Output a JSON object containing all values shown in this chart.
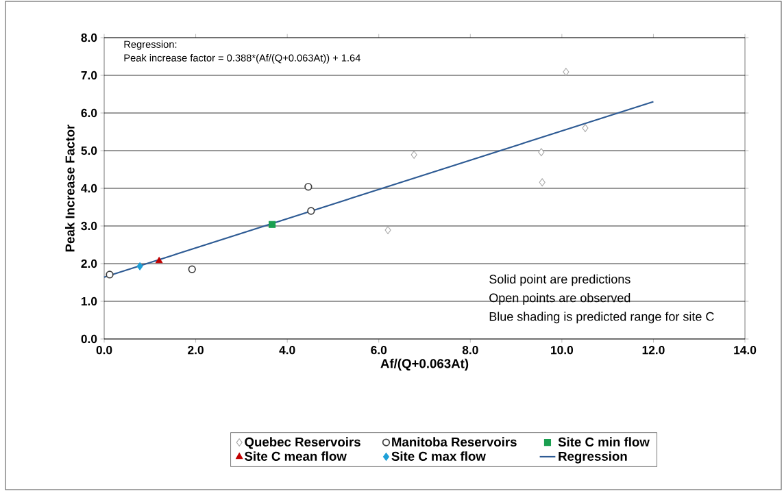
{
  "chart_data": {
    "type": "scatter",
    "xlabel": "Af/(Q+0.063At)",
    "ylabel": "Peak Increase Factor",
    "xlim": [
      0,
      14
    ],
    "ylim": [
      0,
      8
    ],
    "xticks": [
      {
        "value": 0,
        "label": "0.0"
      },
      {
        "value": 2,
        "label": "2.0"
      },
      {
        "value": 4,
        "label": "4.0"
      },
      {
        "value": 6,
        "label": "6.0"
      },
      {
        "value": 8,
        "label": "8.0"
      },
      {
        "value": 10,
        "label": "10.0"
      },
      {
        "value": 12,
        "label": "12.0"
      },
      {
        "value": 14,
        "label": "14.0"
      }
    ],
    "yticks": [
      {
        "value": 0,
        "label": "0.0"
      },
      {
        "value": 1,
        "label": "1.0"
      },
      {
        "value": 2,
        "label": "2.0"
      },
      {
        "value": 3,
        "label": "3.0"
      },
      {
        "value": 4,
        "label": "4.0"
      },
      {
        "value": 5,
        "label": "5.0"
      },
      {
        "value": 6,
        "label": "6.0"
      },
      {
        "value": 7,
        "label": "7.0"
      },
      {
        "value": 8,
        "label": "8.0"
      }
    ],
    "grid": "y",
    "legend": "bottom",
    "annotations": [
      "Regression:",
      "Peak increase factor = 0.388*(Af/(Q+0.063At)) + 1.64",
      "Solid point are predictions",
      "Open points are observed",
      "Blue shading is predicted range for site C"
    ],
    "series": [
      {
        "name": "Quebec Reservoirs",
        "marker": "diamond",
        "color": "#a6a6a6",
        "x": [
          10.09,
          6.77,
          9.55,
          10.51,
          9.57,
          6.2
        ],
        "values": [
          7.09,
          4.89,
          4.96,
          5.6,
          4.16,
          2.89
        ]
      },
      {
        "name": "Manitoba Reservoirs",
        "marker": "circle",
        "color": "#404040",
        "x": [
          0.12,
          1.92,
          4.46,
          4.52
        ],
        "values": [
          1.71,
          1.85,
          4.04,
          3.4
        ]
      },
      {
        "name": "Site C min flow",
        "marker": "square",
        "color": "#1a9f50",
        "x": [
          3.67
        ],
        "values": [
          3.04
        ]
      },
      {
        "name": "Site C mean flow",
        "marker": "triangle",
        "color": "#c00000",
        "x": [
          1.2
        ],
        "values": [
          2.07
        ]
      },
      {
        "name": "Site C max flow",
        "marker": "diamond",
        "color": "#1ea0d8",
        "x": [
          0.78
        ],
        "values": [
          1.93
        ]
      },
      {
        "name": "Regression",
        "type": "line",
        "marker": "none",
        "color": "#2e5b94",
        "x": [
          0,
          12
        ],
        "values": [
          1.64,
          6.3
        ]
      }
    ]
  }
}
